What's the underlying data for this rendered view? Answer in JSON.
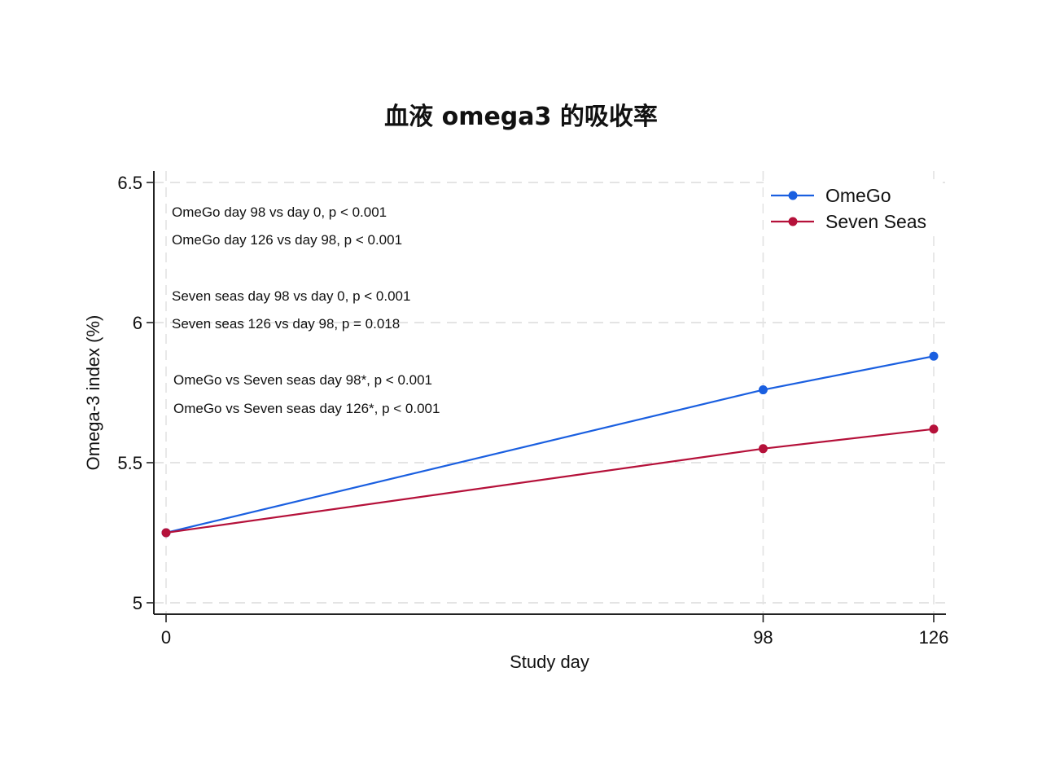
{
  "title": "血液 omega3 的吸收率",
  "chart_data": {
    "type": "line",
    "title": "血液 omega3 的吸收率",
    "xlabel": "Study day",
    "ylabel": "Omega-3 index (%)",
    "x": [
      0,
      98,
      126
    ],
    "x_tick_labels": [
      "0",
      "98",
      "126"
    ],
    "y_ticks": [
      5,
      5.5,
      6,
      6.5
    ],
    "y_tick_labels": [
      "5",
      "5.5",
      "6",
      "6.5"
    ],
    "ylim": [
      4.96,
      6.53
    ],
    "grid": true,
    "legend_position": "top-right",
    "series": [
      {
        "name": "OmeGo",
        "color": "#1a5fe0",
        "values": [
          5.25,
          5.76,
          5.88
        ]
      },
      {
        "name": "Seven Seas",
        "color": "#b5113a",
        "values": [
          5.25,
          5.55,
          5.62
        ]
      }
    ],
    "annotations": [
      "OmeGo day 98 vs day 0, p < 0.001",
      "OmeGo day 126 vs day 98, p < 0.001",
      "Seven seas day 98 vs day 0, p < 0.001",
      "Seven seas 126 vs day 98, p = 0.018",
      "OmeGo vs Seven seas day 98*, p < 0.001",
      "OmeGo vs Seven seas day 126*, p < 0.001"
    ]
  }
}
